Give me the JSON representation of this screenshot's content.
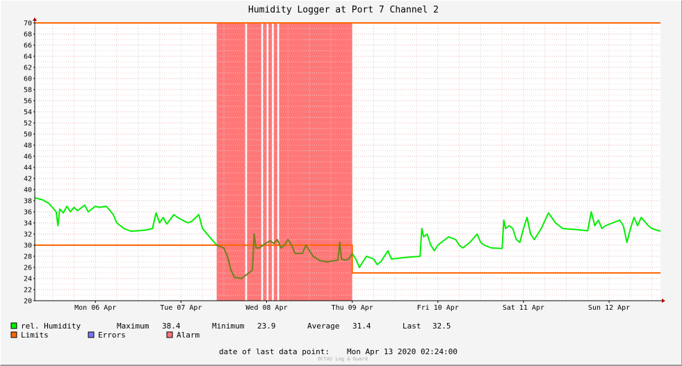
{
  "chart_data": {
    "type": "line",
    "title": "Humidity Logger at Port 7 Channel 2",
    "ylim": [
      20,
      70
    ],
    "y_ticks": [
      20,
      22,
      24,
      26,
      28,
      30,
      32,
      34,
      36,
      38,
      40,
      42,
      44,
      46,
      48,
      50,
      52,
      54,
      56,
      58,
      60,
      62,
      64,
      66,
      68,
      70
    ],
    "x_range_days": [
      "2020-04-05 19:00",
      "2020-04-13 02:24"
    ],
    "x_ticks": [
      {
        "label": "Mon 06 Apr",
        "at": "2020-04-06 12:00"
      },
      {
        "label": "Tue 07 Apr",
        "at": "2020-04-07 12:00"
      },
      {
        "label": "Wed 08 Apr",
        "at": "2020-04-08 12:00"
      },
      {
        "label": "Thu 09 Apr",
        "at": "2020-04-09 12:00"
      },
      {
        "label": "Fri 10 Apr",
        "at": "2020-04-10 12:00"
      },
      {
        "label": "Sat 11 Apr",
        "at": "2020-04-11 12:00"
      },
      {
        "label": "Sun 12 Apr",
        "at": "2020-04-12 12:00"
      }
    ],
    "series": [
      {
        "name": "rel. Humidity",
        "color": "#00ee00",
        "points": [
          [
            "2020-04-05 19:00",
            38.5
          ],
          [
            "2020-04-05 21:00",
            38.2
          ],
          [
            "2020-04-05 23:00",
            37.5
          ],
          [
            "2020-04-06 01:00",
            36.0
          ],
          [
            "2020-04-06 01:30",
            33.5
          ],
          [
            "2020-04-06 02:00",
            36.5
          ],
          [
            "2020-04-06 03:00",
            35.8
          ],
          [
            "2020-04-06 04:00",
            37.0
          ],
          [
            "2020-04-06 05:00",
            36.0
          ],
          [
            "2020-04-06 06:00",
            36.8
          ],
          [
            "2020-04-06 07:00",
            36.2
          ],
          [
            "2020-04-06 09:00",
            37.2
          ],
          [
            "2020-04-06 10:00",
            36.0
          ],
          [
            "2020-04-06 12:00",
            37.0
          ],
          [
            "2020-04-06 13:00",
            36.8
          ],
          [
            "2020-04-06 15:00",
            37.0
          ],
          [
            "2020-04-06 16:00",
            36.3
          ],
          [
            "2020-04-06 17:00",
            35.5
          ],
          [
            "2020-04-06 18:00",
            34.0
          ],
          [
            "2020-04-06 20:00",
            33.0
          ],
          [
            "2020-04-06 22:00",
            32.5
          ],
          [
            "2020-04-07 02:00",
            32.7
          ],
          [
            "2020-04-07 04:00",
            33.0
          ],
          [
            "2020-04-07 05:00",
            35.8
          ],
          [
            "2020-04-07 06:00",
            34.0
          ],
          [
            "2020-04-07 07:00",
            35.0
          ],
          [
            "2020-04-07 08:00",
            33.8
          ],
          [
            "2020-04-07 10:00",
            35.5
          ],
          [
            "2020-04-07 11:00",
            35.0
          ],
          [
            "2020-04-07 13:00",
            34.3
          ],
          [
            "2020-04-07 14:00",
            34.0
          ],
          [
            "2020-04-07 15:00",
            34.3
          ],
          [
            "2020-04-07 17:00",
            35.5
          ],
          [
            "2020-04-07 18:00",
            33.0
          ],
          [
            "2020-04-07 20:00",
            31.5
          ],
          [
            "2020-04-07 22:00",
            30.0
          ],
          [
            "2020-04-08 00:00",
            29.5
          ],
          [
            "2020-04-08 01:00",
            28.0
          ],
          [
            "2020-04-08 02:00",
            25.5
          ],
          [
            "2020-04-08 03:00",
            24.2
          ],
          [
            "2020-04-08 05:00",
            24.0
          ],
          [
            "2020-04-08 07:00",
            25.0
          ],
          [
            "2020-04-08 08:00",
            25.5
          ],
          [
            "2020-04-08 08:30",
            32.0
          ],
          [
            "2020-04-08 09:00",
            29.5
          ],
          [
            "2020-04-08 10:00",
            29.5
          ],
          [
            "2020-04-08 11:00",
            30.0
          ],
          [
            "2020-04-08 13:00",
            30.8
          ],
          [
            "2020-04-08 14:00",
            30.3
          ],
          [
            "2020-04-08 15:00",
            31.0
          ],
          [
            "2020-04-08 16:00",
            29.5
          ],
          [
            "2020-04-08 17:00",
            30.0
          ],
          [
            "2020-04-08 18:00",
            31.0
          ],
          [
            "2020-04-08 19:00",
            30.0
          ],
          [
            "2020-04-08 20:00",
            28.5
          ],
          [
            "2020-04-08 22:00",
            28.5
          ],
          [
            "2020-04-08 23:00",
            30.0
          ],
          [
            "2020-04-09 00:00",
            29.0
          ],
          [
            "2020-04-09 01:00",
            28.0
          ],
          [
            "2020-04-09 03:00",
            27.2
          ],
          [
            "2020-04-09 05:00",
            27.0
          ],
          [
            "2020-04-09 07:00",
            27.2
          ],
          [
            "2020-04-09 08:00",
            27.3
          ],
          [
            "2020-04-09 08:30",
            30.5
          ],
          [
            "2020-04-09 09:00",
            27.5
          ],
          [
            "2020-04-09 10:00",
            27.3
          ],
          [
            "2020-04-09 11:00",
            27.5
          ],
          [
            "2020-04-09 11:30",
            28.0
          ],
          [
            "2020-04-09 12:00",
            28.5
          ],
          [
            "2020-04-09 13:00",
            27.5
          ],
          [
            "2020-04-09 14:00",
            26.0
          ],
          [
            "2020-04-09 15:00",
            27.0
          ],
          [
            "2020-04-09 16:00",
            28.0
          ],
          [
            "2020-04-09 18:00",
            27.5
          ],
          [
            "2020-04-09 19:00",
            26.5
          ],
          [
            "2020-04-09 20:00",
            27.0
          ],
          [
            "2020-04-09 22:00",
            29.0
          ],
          [
            "2020-04-09 23:00",
            27.5
          ],
          [
            "2020-04-10 03:00",
            27.8
          ],
          [
            "2020-04-10 07:00",
            28.0
          ],
          [
            "2020-04-10 07:30",
            33.0
          ],
          [
            "2020-04-10 08:00",
            31.5
          ],
          [
            "2020-04-10 09:00",
            32.0
          ],
          [
            "2020-04-10 10:00",
            30.0
          ],
          [
            "2020-04-10 11:00",
            29.0
          ],
          [
            "2020-04-10 12:00",
            30.0
          ],
          [
            "2020-04-10 13:00",
            30.5
          ],
          [
            "2020-04-10 14:00",
            31.0
          ],
          [
            "2020-04-10 15:00",
            31.5
          ],
          [
            "2020-04-10 17:00",
            31.0
          ],
          [
            "2020-04-10 18:00",
            30.0
          ],
          [
            "2020-04-10 19:00",
            29.5
          ],
          [
            "2020-04-10 21:00",
            30.5
          ],
          [
            "2020-04-10 23:00",
            32.0
          ],
          [
            "2020-04-11 00:00",
            30.5
          ],
          [
            "2020-04-11 01:00",
            30.0
          ],
          [
            "2020-04-11 03:00",
            29.5
          ],
          [
            "2020-04-11 06:00",
            29.4
          ],
          [
            "2020-04-11 06:30",
            34.5
          ],
          [
            "2020-04-11 07:00",
            33.0
          ],
          [
            "2020-04-11 08:00",
            33.5
          ],
          [
            "2020-04-11 09:00",
            33.0
          ],
          [
            "2020-04-11 10:00",
            31.0
          ],
          [
            "2020-04-11 11:00",
            30.5
          ],
          [
            "2020-04-11 12:00",
            33.0
          ],
          [
            "2020-04-11 13:00",
            35.0
          ],
          [
            "2020-04-11 14:00",
            32.0
          ],
          [
            "2020-04-11 15:00",
            31.0
          ],
          [
            "2020-04-11 17:00",
            33.0
          ],
          [
            "2020-04-11 19:00",
            35.8
          ],
          [
            "2020-04-11 21:00",
            34.0
          ],
          [
            "2020-04-11 23:00",
            33.0
          ],
          [
            "2020-04-12 03:00",
            32.8
          ],
          [
            "2020-04-12 06:00",
            32.6
          ],
          [
            "2020-04-12 07:00",
            36.0
          ],
          [
            "2020-04-12 08:00",
            33.5
          ],
          [
            "2020-04-12 09:00",
            34.5
          ],
          [
            "2020-04-12 10:00",
            33.0
          ],
          [
            "2020-04-12 11:00",
            33.5
          ],
          [
            "2020-04-12 13:00",
            34.0
          ],
          [
            "2020-04-12 15:00",
            34.5
          ],
          [
            "2020-04-12 16:00",
            33.5
          ],
          [
            "2020-04-12 17:00",
            30.5
          ],
          [
            "2020-04-12 18:00",
            33.0
          ],
          [
            "2020-04-12 19:00",
            35.0
          ],
          [
            "2020-04-12 20:00",
            33.5
          ],
          [
            "2020-04-12 21:00",
            35.0
          ],
          [
            "2020-04-12 23:00",
            33.5
          ],
          [
            "2020-04-13 00:00",
            33.0
          ],
          [
            "2020-04-13 02:24",
            32.5
          ]
        ]
      },
      {
        "name": "Limits",
        "color": "#ff6600",
        "upper": [
          [
            "2020-04-05 19:00",
            70
          ],
          [
            "2020-04-13 02:24",
            70
          ]
        ],
        "lower": [
          [
            "2020-04-05 19:00",
            30
          ],
          [
            "2020-04-09 12:00",
            30
          ],
          [
            "2020-04-09 12:00",
            25
          ],
          [
            "2020-04-13 02:24",
            25
          ]
        ]
      }
    ],
    "alarm_spans": [
      [
        "2020-04-07 22:00",
        "2020-04-08 06:00"
      ],
      [
        "2020-04-08 06:30",
        "2020-04-08 10:30"
      ],
      [
        "2020-04-08 11:00",
        "2020-04-08 12:00"
      ],
      [
        "2020-04-08 12:30",
        "2020-04-08 13:30"
      ],
      [
        "2020-04-08 14:00",
        "2020-04-08 15:00"
      ],
      [
        "2020-04-08 15:30",
        "2020-04-09 12:00"
      ]
    ],
    "alarm_color": "#ff7777"
  },
  "legend": {
    "humidity": {
      "label": "rel. Humidity",
      "color": "#00ee00"
    },
    "limits": {
      "label": "Limits",
      "color": "#ff6600"
    },
    "errors": {
      "label": "Errors",
      "color": "#7777ff"
    },
    "alarm": {
      "label": "Alarm",
      "color": "#ff7777"
    }
  },
  "stats": {
    "max_label": "Maximum",
    "max_value": "38.4",
    "min_label": "Minimum",
    "min_value": "23.9",
    "avg_label": "Average",
    "avg_value": "31.4",
    "last_label": "Last",
    "last_value": "32.5"
  },
  "footer": {
    "last_point_label": "date of last data point:",
    "last_point_value": "Mon Apr 13 2020 02:24:00",
    "watermark": "OCTAS Log & Guard"
  }
}
